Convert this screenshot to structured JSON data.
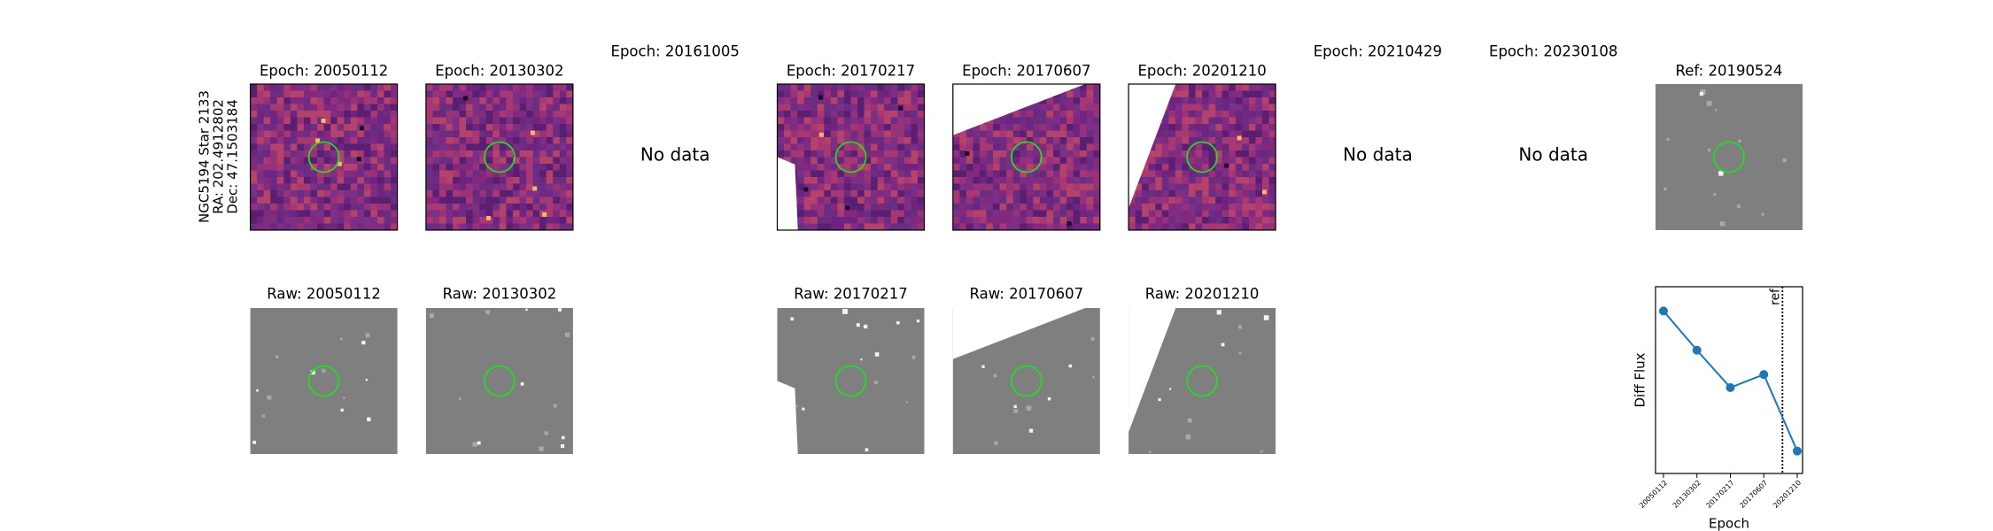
{
  "side_label": [
    "NGC5194 Star 2133",
    "RA: 202.4912802",
    "Dec: 47.1503184"
  ],
  "top_row": [
    {
      "title": "Epoch: 20050112"
    },
    {
      "title": "Epoch: 20130302"
    },
    {
      "title": "Epoch: 20161005",
      "message": "No data"
    },
    {
      "title": "Epoch: 20170217"
    },
    {
      "title": "Epoch: 20170607"
    },
    {
      "title": "Epoch: 20201210"
    },
    {
      "title": "Epoch: 20210429",
      "message": "No data"
    },
    {
      "title": "Epoch: 20230108",
      "message": "No data"
    },
    {
      "title": "Ref: 20190524"
    }
  ],
  "bottom_row": [
    {
      "title": "Raw: 20050112"
    },
    {
      "title": "Raw: 20130302"
    },
    null,
    {
      "title": "Raw: 20170217"
    },
    {
      "title": "Raw: 20170607"
    },
    {
      "title": "Raw: 20201210"
    },
    null,
    null
  ],
  "chart_data": {
    "type": "line",
    "xlabel": "Epoch",
    "ylabel": "Diff Flux",
    "categories": [
      "20050112",
      "20130302",
      "20170217",
      "20170607",
      "20201210"
    ],
    "series": [
      {
        "name": "Diff Flux",
        "color": "#1f77b4",
        "values": [
          0.87,
          0.66,
          0.46,
          0.53,
          0.12
        ]
      }
    ],
    "ylim": [
      0,
      1
    ],
    "ref_label": "ref"
  }
}
